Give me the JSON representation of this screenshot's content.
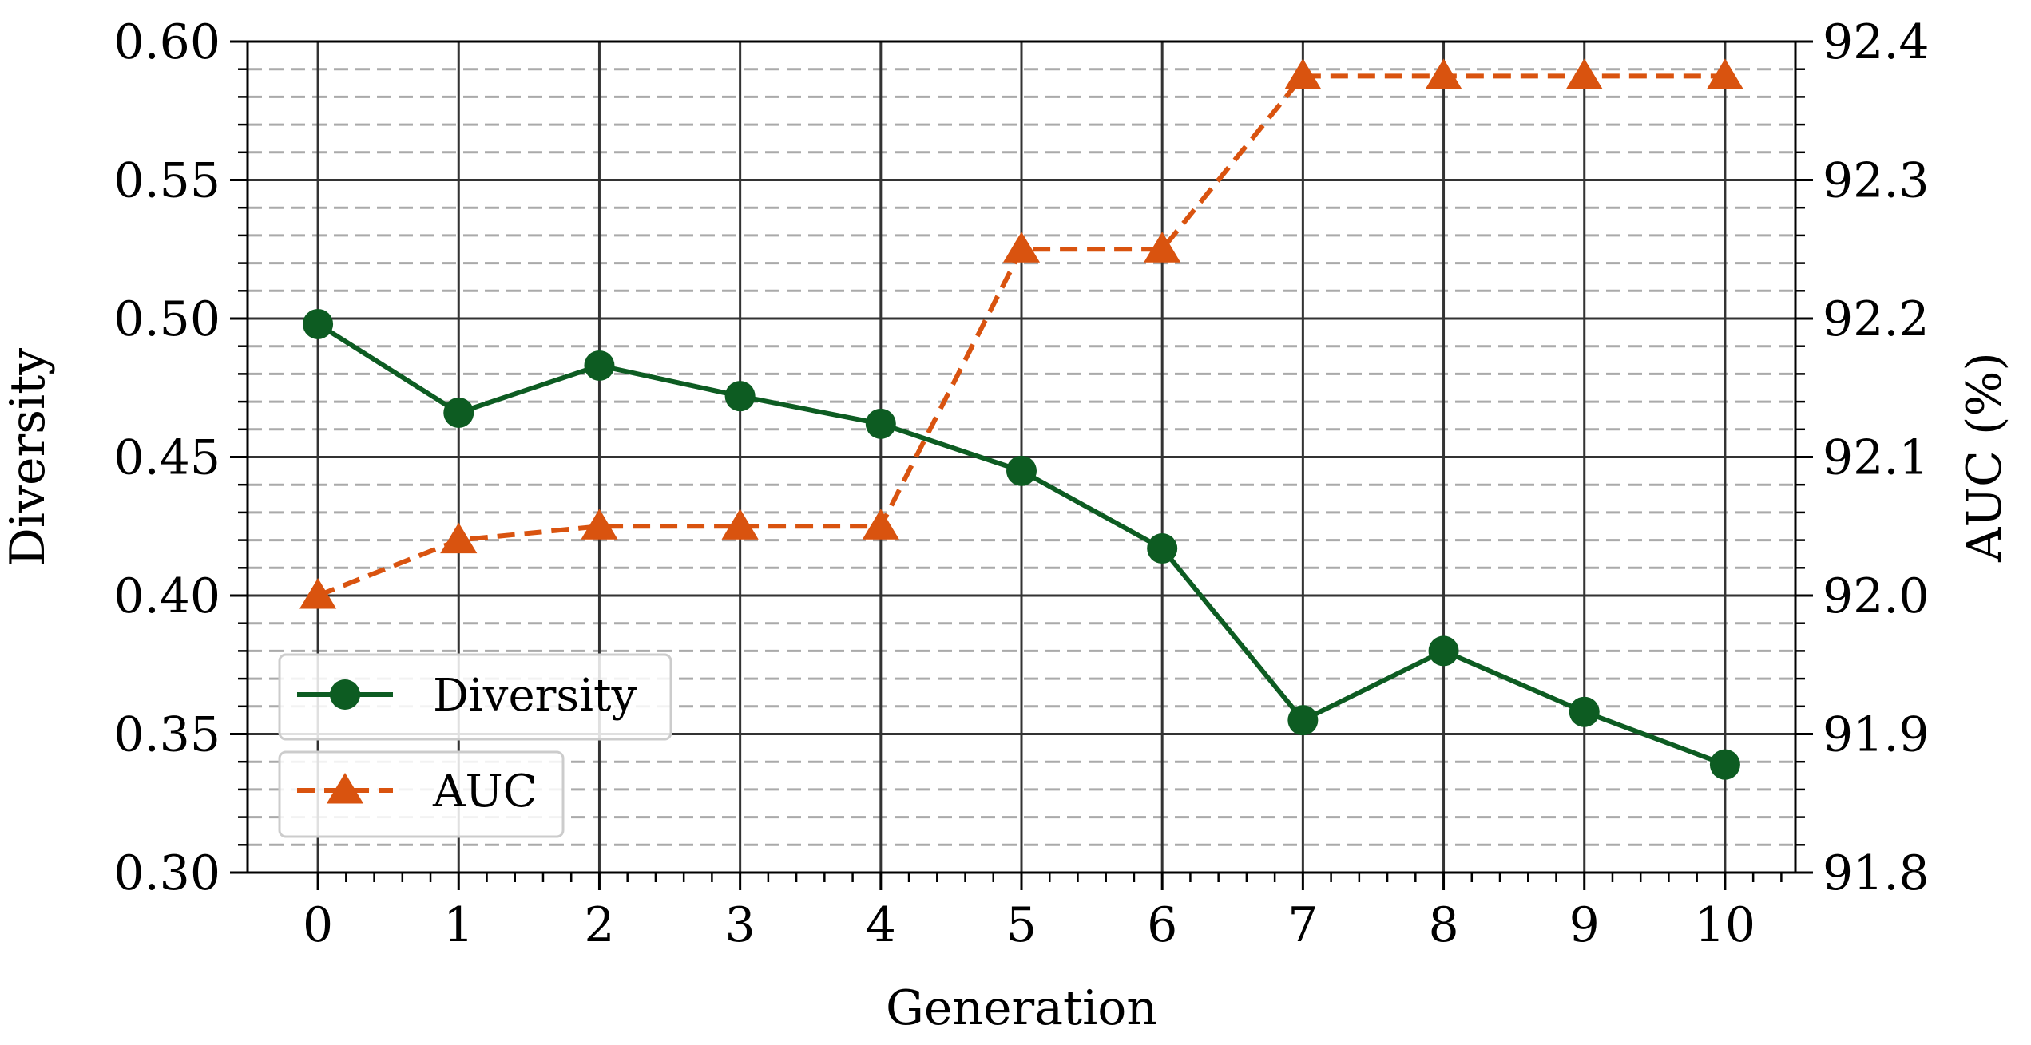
{
  "chart_data": {
    "type": "line",
    "x": [
      0,
      1,
      2,
      3,
      4,
      5,
      6,
      7,
      8,
      9,
      10
    ],
    "xlabel": "Generation",
    "xticks": [
      "0",
      "1",
      "2",
      "3",
      "4",
      "5",
      "6",
      "7",
      "8",
      "9",
      "10"
    ],
    "xlim": [
      -0.5,
      10.5
    ],
    "ylabel_left": "Diversity",
    "ylim_left": [
      0.3,
      0.6
    ],
    "yticks_left": [
      "0.30",
      "0.35",
      "0.40",
      "0.45",
      "0.50",
      "0.55",
      "0.60"
    ],
    "ylabel_right": "AUC (%)",
    "ylim_right": [
      91.8,
      92.4
    ],
    "yticks_right": [
      "91.8",
      "91.9",
      "92.0",
      "92.1",
      "92.2",
      "92.3",
      "92.4"
    ],
    "grid": true,
    "legend_position": "lower-left",
    "series": [
      {
        "name": "Diversity",
        "axis": "left",
        "marker": "circle",
        "linestyle": "solid",
        "color": "#0d5c22",
        "values": [
          0.498,
          0.466,
          0.483,
          0.472,
          0.462,
          0.445,
          0.417,
          0.355,
          0.38,
          0.358,
          0.339
        ]
      },
      {
        "name": "AUC",
        "axis": "right",
        "marker": "triangle",
        "linestyle": "dashed",
        "color": "#d9530f",
        "values": [
          92.0,
          92.04,
          92.05,
          92.05,
          92.05,
          92.25,
          92.25,
          92.375,
          92.375,
          92.375,
          92.375
        ]
      }
    ]
  }
}
